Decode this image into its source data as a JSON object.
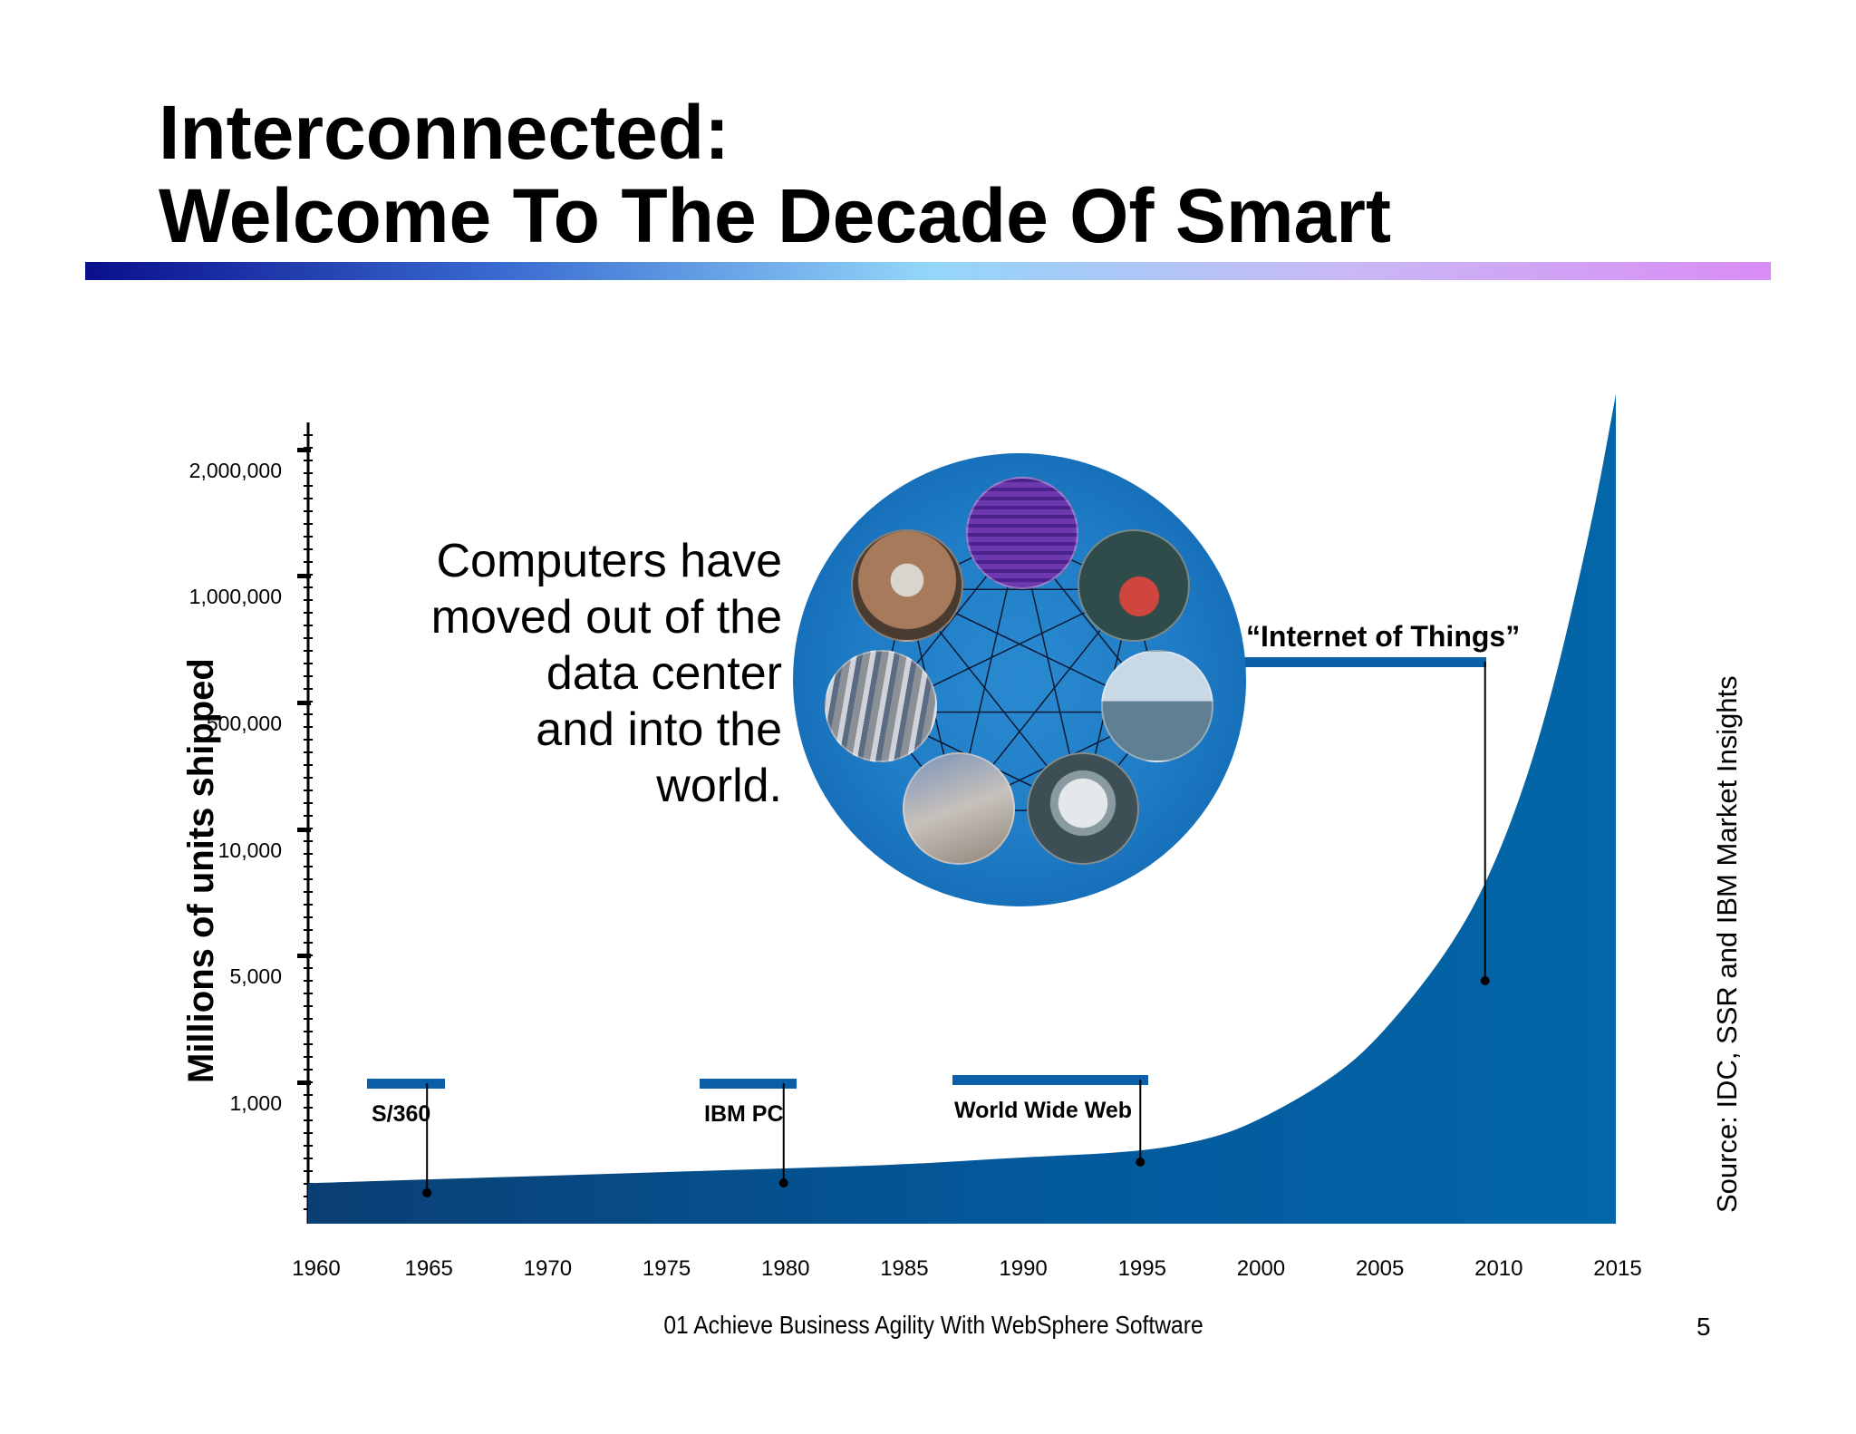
{
  "slide": {
    "title_line1": "Interconnected:",
    "title_line2": "Welcome To The Decade Of Smart",
    "tagline": [
      "Computers have",
      "moved out of the",
      "data center",
      "and into the",
      "world."
    ],
    "iot_label": "“Internet of Things”",
    "source": "Source: IDC, SSR and IBM Market Insights",
    "footer": "01 Achieve Business Agility With WebSphere Software",
    "page_number": "5",
    "gradient_colors": [
      "#0a0f8c",
      "#3a6cd1",
      "#93d6fa",
      "#c9b8f5",
      "#d98cf5"
    ],
    "circle_photos": [
      "microchip-image",
      "cargo-ship-image",
      "oil-rig-image",
      "utility-meter-image",
      "security-camera-image",
      "traffic-image",
      "smartphone-image"
    ]
  },
  "chart_data": {
    "type": "area",
    "ylabel": "Millions of units shipped",
    "xlabel": "",
    "title": "",
    "y_tick_labels": [
      "2,000,000",
      "1,000,000",
      "500,000",
      "10,000",
      "5,000",
      "1,000"
    ],
    "x": [
      1960,
      1965,
      1970,
      1975,
      1980,
      1985,
      1990,
      1995,
      2000,
      2005,
      2010,
      2015
    ],
    "x_tick_labels": [
      "1960",
      "1965",
      "1970",
      "1975",
      "1980",
      "1985",
      "1990",
      "1995",
      "2000",
      "2005",
      "2010",
      "2015"
    ],
    "xlim": [
      1960,
      2015
    ],
    "series": [
      {
        "x": [
          1960,
          1965,
          1970,
          1975,
          1980,
          1985,
          1990,
          1995,
          1998,
          2000,
          2003,
          2005,
          2008,
          2010,
          2012,
          2014,
          2015
        ],
        "values": [
          1.1,
          1.2,
          1.3,
          1.4,
          1.5,
          1.6,
          1.8,
          1.95,
          2.3,
          2.8,
          3.9,
          5,
          7.4,
          9.8,
          13.5,
          19,
          22.5
        ]
      }
    ],
    "y_scale_note": "non-linear",
    "annotations": [
      {
        "label": "S/360",
        "x": 1965
      },
      {
        "label": "IBM PC",
        "x": 1980
      },
      {
        "label": "World Wide Web",
        "x": 1995
      },
      {
        "label": "“Internet of Things”",
        "x": 2009.5
      }
    ],
    "fill_colors": [
      "#0a3f74",
      "#0366a8"
    ],
    "grid": false
  }
}
